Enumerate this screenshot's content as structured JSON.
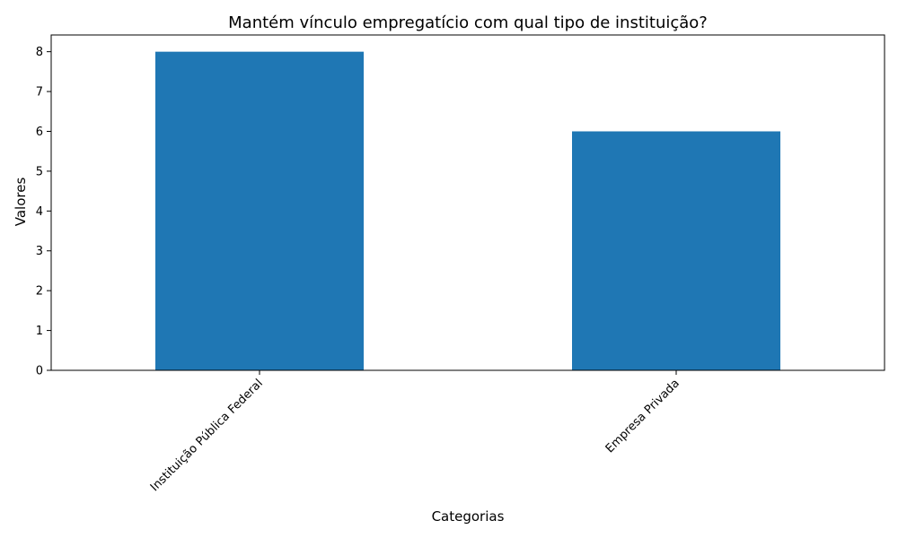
{
  "chart_data": {
    "type": "bar",
    "title": "Mantém vínculo empregatício com qual tipo de instituição?",
    "xlabel": "Categorias",
    "ylabel": "Valores",
    "categories": [
      "Instituição Pública Federal",
      "Empresa Privada"
    ],
    "values": [
      8,
      6
    ],
    "ylim": [
      0,
      8.42
    ],
    "yticks": [
      0,
      1,
      2,
      3,
      4,
      5,
      6,
      7,
      8
    ],
    "bar_color": "#1f77b4",
    "grid": false,
    "legend": "none"
  }
}
